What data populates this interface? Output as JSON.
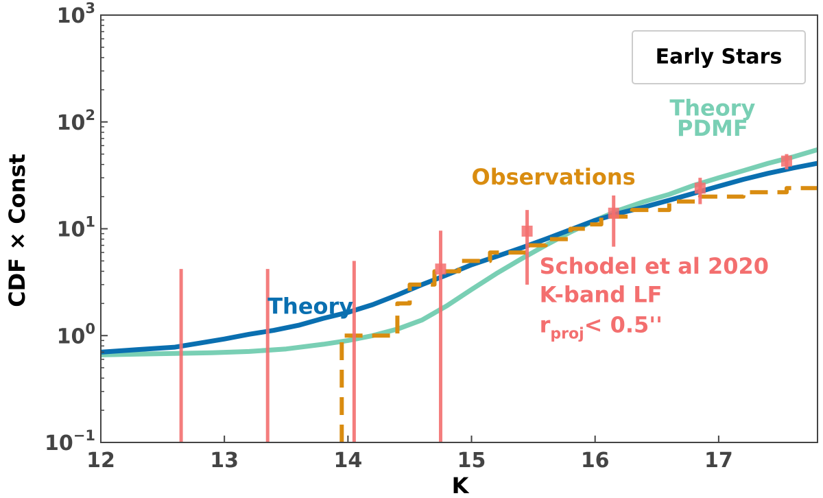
{
  "chart_data": {
    "type": "line",
    "xlabel": "K",
    "ylabel": "CDF × Const",
    "xlim": [
      12,
      17.8
    ],
    "ylim": [
      0.1,
      1000
    ],
    "yscale": "log",
    "x_ticks": [
      "12",
      "13",
      "14",
      "15",
      "16",
      "17"
    ],
    "y_ticks": [
      {
        "value": 0.1,
        "base": "10",
        "exp": "−1"
      },
      {
        "value": 1,
        "base": "10",
        "exp": "0"
      },
      {
        "value": 10,
        "base": "10",
        "exp": "1"
      },
      {
        "value": 100,
        "base": "10",
        "exp": "2"
      },
      {
        "value": 1000,
        "base": "10",
        "exp": "3"
      }
    ],
    "legend": {
      "text": "Early Stars",
      "placement": "top-right"
    },
    "colors": {
      "theory": "#0a6fb0",
      "pdmf": "#79cfb4",
      "observations": "#d98c10",
      "schodel": "#f36f6f",
      "axis": "#444444"
    },
    "series": [
      {
        "name": "Theory",
        "points": [
          [
            12.0,
            0.7
          ],
          [
            12.3,
            0.74
          ],
          [
            12.6,
            0.78
          ],
          [
            12.8,
            0.85
          ],
          [
            13.0,
            0.93
          ],
          [
            13.2,
            1.03
          ],
          [
            13.4,
            1.12
          ],
          [
            13.6,
            1.25
          ],
          [
            13.8,
            1.45
          ],
          [
            14.0,
            1.65
          ],
          [
            14.2,
            1.95
          ],
          [
            14.4,
            2.4
          ],
          [
            14.6,
            3.0
          ],
          [
            14.8,
            3.7
          ],
          [
            15.0,
            4.6
          ],
          [
            15.2,
            5.5
          ],
          [
            15.4,
            6.6
          ],
          [
            15.6,
            8.0
          ],
          [
            15.8,
            9.8
          ],
          [
            16.0,
            12.0
          ],
          [
            16.2,
            14.0
          ],
          [
            16.4,
            16.0
          ],
          [
            16.6,
            18.5
          ],
          [
            16.8,
            21.5
          ],
          [
            17.0,
            25.0
          ],
          [
            17.2,
            29.0
          ],
          [
            17.4,
            33.0
          ],
          [
            17.6,
            37.0
          ],
          [
            17.8,
            41.0
          ]
        ]
      },
      {
        "name": "Theory PDMF",
        "points": [
          [
            12.0,
            0.66
          ],
          [
            12.3,
            0.67
          ],
          [
            12.6,
            0.68
          ],
          [
            12.9,
            0.69
          ],
          [
            13.2,
            0.71
          ],
          [
            13.5,
            0.75
          ],
          [
            13.8,
            0.83
          ],
          [
            14.0,
            0.9
          ],
          [
            14.2,
            1.0
          ],
          [
            14.4,
            1.15
          ],
          [
            14.6,
            1.4
          ],
          [
            14.8,
            1.9
          ],
          [
            15.0,
            2.7
          ],
          [
            15.2,
            3.8
          ],
          [
            15.4,
            5.2
          ],
          [
            15.6,
            7.0
          ],
          [
            15.8,
            9.3
          ],
          [
            16.0,
            12.0
          ],
          [
            16.2,
            15.0
          ],
          [
            16.4,
            18.0
          ],
          [
            16.6,
            21.0
          ],
          [
            16.8,
            25.5
          ],
          [
            17.0,
            30.0
          ],
          [
            17.2,
            35.0
          ],
          [
            17.4,
            41.0
          ],
          [
            17.6,
            47.0
          ],
          [
            17.8,
            55.0
          ]
        ]
      },
      {
        "name": "Observations",
        "step": true,
        "points": [
          [
            13.95,
            0.1
          ],
          [
            13.95,
            1.0
          ],
          [
            14.4,
            1.0
          ],
          [
            14.4,
            2.0
          ],
          [
            14.5,
            2.0
          ],
          [
            14.5,
            3.0
          ],
          [
            14.7,
            3.0
          ],
          [
            14.7,
            4.0
          ],
          [
            14.9,
            4.0
          ],
          [
            14.9,
            5.0
          ],
          [
            15.15,
            5.0
          ],
          [
            15.15,
            6.0
          ],
          [
            15.45,
            6.0
          ],
          [
            15.45,
            7.0
          ],
          [
            15.6,
            7.0
          ],
          [
            15.6,
            8.0
          ],
          [
            15.8,
            8.0
          ],
          [
            15.8,
            10.0
          ],
          [
            15.95,
            10.0
          ],
          [
            15.95,
            11.0
          ],
          [
            16.05,
            11.0
          ],
          [
            16.05,
            13.0
          ],
          [
            16.3,
            13.0
          ],
          [
            16.3,
            15.0
          ],
          [
            16.6,
            15.0
          ],
          [
            16.6,
            18.0
          ],
          [
            16.85,
            18.0
          ],
          [
            16.85,
            20.0
          ],
          [
            17.2,
            20.0
          ],
          [
            17.2,
            22.0
          ],
          [
            17.55,
            22.0
          ],
          [
            17.55,
            24.0
          ],
          [
            17.8,
            24.0
          ]
        ]
      }
    ],
    "errorbars": {
      "name": "Schodel et al 2020 K-band LF",
      "points": [
        {
          "x": 12.65,
          "y": null,
          "ylow": 0.1,
          "yhigh": 4.2
        },
        {
          "x": 13.35,
          "y": null,
          "ylow": 0.1,
          "yhigh": 4.2
        },
        {
          "x": 14.05,
          "y": null,
          "ylow": 0.1,
          "yhigh": 5.0
        },
        {
          "x": 14.75,
          "y": 4.2,
          "ylow": 0.1,
          "yhigh": 9.6
        },
        {
          "x": 15.45,
          "y": 9.5,
          "ylow": 3.0,
          "yhigh": 15.0
        },
        {
          "x": 16.15,
          "y": 14.0,
          "ylow": 6.8,
          "yhigh": 20.5
        },
        {
          "x": 16.85,
          "y": 24.0,
          "ylow": 17.0,
          "yhigh": 30.0
        },
        {
          "x": 17.55,
          "y": 43.0,
          "ylow": 36.0,
          "yhigh": 50.0
        }
      ]
    },
    "annotations": [
      {
        "id": "theory",
        "text": "Theory",
        "x": 13.35,
        "y": 1.6,
        "color": "#0a6fb0"
      },
      {
        "id": "pdmf_1",
        "text": "Theory",
        "x": 16.95,
        "y": 115,
        "color": "#79cfb4"
      },
      {
        "id": "pdmf_2",
        "text": "PDMF",
        "x": 16.95,
        "y": 74,
        "color": "#79cfb4"
      },
      {
        "id": "obs",
        "text": "Observations",
        "x": 15.0,
        "y": 26.0,
        "color": "#d98c10"
      },
      {
        "id": "sch_1",
        "text": "Schodel et al 2020",
        "x": 15.55,
        "y": 3.8,
        "color": "#f36f6f"
      },
      {
        "id": "sch_2",
        "text": "K-band LF",
        "x": 15.55,
        "y": 2.05,
        "color": "#f36f6f"
      }
    ],
    "rproj_label": {
      "main": "r",
      "sub": "proj",
      "rest": "< 0.5''",
      "x": 15.55,
      "y": 1.07,
      "color": "#f36f6f"
    }
  }
}
